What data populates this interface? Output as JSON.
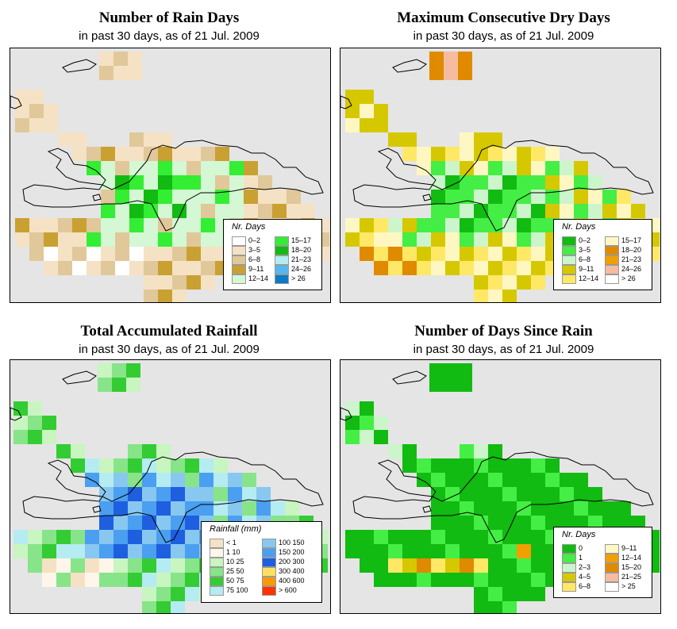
{
  "colors": {
    "land_background": "#e5e5e5",
    "coast": "#000000"
  },
  "panels": [
    {
      "title": "Number of Rain Days",
      "subtitle": "in past 30 days, as of  21 Jul. 2009",
      "legend_title": "Nr. Days",
      "legend_items": [
        {
          "label": "0–2",
          "color": "#ffffff"
        },
        {
          "label": "3–5",
          "color": "#f5e2c4"
        },
        {
          "label": "6–8",
          "color": "#e0c89a"
        },
        {
          "label": "9–11",
          "color": "#c9a032"
        },
        {
          "label": "12–14",
          "color": "#d4f7d4"
        },
        {
          "label": "15–17",
          "color": "#33ee33"
        },
        {
          "label": "18–20",
          "color": "#11bb11"
        },
        {
          "label": "21–23",
          "color": "#b4ecf2"
        },
        {
          "label": "24–26",
          "color": "#55b7f0"
        },
        {
          "label": "> 26",
          "color": "#0a7cc8"
        }
      ]
    },
    {
      "title": "Maximum Consecutive Dry Days",
      "subtitle": "in past 30 days, as of  21 Jul. 2009",
      "legend_title": "Nr. Days",
      "legend_items": [
        {
          "label": "0–2",
          "color": "#11bb11"
        },
        {
          "label": "3–5",
          "color": "#44ee44"
        },
        {
          "label": "6–8",
          "color": "#ccf5cc"
        },
        {
          "label": "9–11",
          "color": "#d6c800"
        },
        {
          "label": "12–14",
          "color": "#ffe866"
        },
        {
          "label": "15–17",
          "color": "#fff7c2"
        },
        {
          "label": "18–20",
          "color": "#e08a00"
        },
        {
          "label": "21–23",
          "color": "#f0a000"
        },
        {
          "label": "24–26",
          "color": "#f5bca0"
        },
        {
          "label": "> 26",
          "color": "#ffffff"
        }
      ]
    },
    {
      "title": "Total Accumulated Rainfall",
      "subtitle": "in past 30 days, as of  21 Jul. 2009",
      "legend_title": "Rainfall (mm)",
      "legend_items": [
        {
          "label": "< 1",
          "color": "#f5e2c4"
        },
        {
          "label": "1    10",
          "color": "#fff6ea"
        },
        {
          "label": "10   25",
          "color": "#c8f5c0"
        },
        {
          "label": "25   50",
          "color": "#88e488"
        },
        {
          "label": "50   75",
          "color": "#33cc33"
        },
        {
          "label": "75  100",
          "color": "#b4ecf2"
        },
        {
          "label": "100  150",
          "color": "#88c8f0"
        },
        {
          "label": "150  200",
          "color": "#4a9ff0"
        },
        {
          "label": "200  300",
          "color": "#1e5fe0"
        },
        {
          "label": "300  400",
          "color": "#ffe060"
        },
        {
          "label": "400  600",
          "color": "#ff9900"
        },
        {
          "label": "> 600",
          "color": "#ff3300"
        }
      ]
    },
    {
      "title": "Number of Days Since Rain",
      "subtitle": "in past 30 days, as of  21 Jul. 2009",
      "legend_title": "Nr. Days",
      "legend_items": [
        {
          "label": "0",
          "color": "#11bb11"
        },
        {
          "label": "1",
          "color": "#44ee44"
        },
        {
          "label": "2–3",
          "color": "#ccf5cc"
        },
        {
          "label": "4–5",
          "color": "#d6c800"
        },
        {
          "label": "6–8",
          "color": "#ffe866"
        },
        {
          "label": "9–11",
          "color": "#fff7c2"
        },
        {
          "label": "12–14",
          "color": "#f0a000"
        },
        {
          "label": "15–20",
          "color": "#e08a00"
        },
        {
          "label": "21–25",
          "color": "#f5bca0"
        },
        {
          "label": "> 25",
          "color": "#ffffff"
        }
      ]
    }
  ]
}
